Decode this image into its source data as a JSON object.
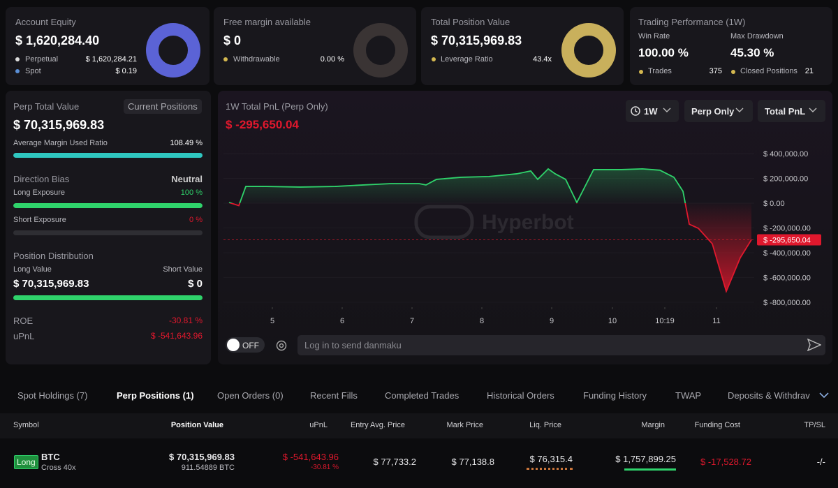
{
  "account_equity": {
    "title": "Account Equity",
    "value": "$ 1,620,284.40",
    "rows": [
      {
        "label": "Perpetual",
        "value": "$ 1,620,284.21"
      },
      {
        "label": "Spot",
        "value": "$ 0.19"
      }
    ]
  },
  "free_margin": {
    "title": "Free margin available",
    "value": "$ 0",
    "rows": [
      {
        "label": "Withdrawable",
        "value": "0.00 %"
      }
    ]
  },
  "total_position": {
    "title": "Total Position Value",
    "value": "$ 70,315,969.83",
    "rows": [
      {
        "label": "Leverage Ratio",
        "value": "43.4x"
      }
    ]
  },
  "performance": {
    "title": "Trading Performance (1W)",
    "stats": [
      {
        "label": "Win Rate",
        "value": "100.00 %"
      },
      {
        "label": "Max Drawdown",
        "value": "45.30 %"
      }
    ],
    "rows": [
      {
        "label": "Trades",
        "value": "375"
      },
      {
        "label": "Closed Positions",
        "value": "21"
      }
    ]
  },
  "perp": {
    "title": "Perp Total Value",
    "button": "Current Positions",
    "value": "$ 70,315,969.83",
    "margin_ratio": {
      "label": "Average Margin Used Ratio",
      "value": 108.49,
      "value_label": "108.49 %"
    },
    "bias_title": "Direction Bias",
    "bias": "Neutral",
    "long": {
      "label": "Long Exposure",
      "value": 100,
      "value_label": "100 %"
    },
    "short": {
      "label": "Short Exposure",
      "value": 0,
      "value_label": "0 %"
    },
    "distribution_title": "Position Distribution",
    "long_value": {
      "label": "Long Value",
      "value": "$ 70,315,969.83"
    },
    "short_value": {
      "label": "Short Value",
      "value": "$ 0"
    },
    "roe": {
      "label": "ROE",
      "value": "-30.81 %"
    },
    "upnl": {
      "label": "uPnL",
      "value": "$ -541,643.96"
    }
  },
  "chart_controls": [
    "1W",
    "Perp Only",
    "Total PnL"
  ],
  "chart_data": {
    "type": "area",
    "title": "1W Total PnL (Perp Only)",
    "current": {
      "value": -295650.04,
      "label": "$ -295,650.04"
    },
    "watermark": "Hyperbot",
    "x": [
      4.38,
      4.52,
      4.62,
      4.9,
      5.4,
      5.9,
      6.3,
      6.7,
      7.1,
      7.2,
      7.35,
      7.7,
      8.1,
      8.5,
      8.7,
      8.8,
      8.95,
      9.05,
      9.2,
      9.36,
      9.6,
      10.0,
      10.3,
      10.55,
      10.75,
      10.88,
      10.97,
      11.1,
      11.3,
      11.5,
      11.7,
      11.86
    ],
    "series": [
      {
        "values": [
          5000,
          -20000,
          135000,
          135000,
          130000,
          135000,
          147000,
          158000,
          158000,
          147000,
          192000,
          209000,
          215000,
          237000,
          260000,
          192000,
          277000,
          237000,
          192000,
          5000,
          271000,
          271000,
          277000,
          266000,
          209000,
          96000,
          -170000,
          -203000,
          -328000,
          -712000,
          -441000,
          -295650.04
        ],
        "color": "#2fd36b",
        "negative_color": "#e0182d"
      }
    ],
    "xlim": [
      4.3,
      11.9
    ],
    "ylim": [
      -840000,
      513000
    ],
    "xticks": [
      5,
      6,
      7,
      8,
      9,
      {
        "value": 9.87,
        "label": "10"
      },
      {
        "value": 10.62,
        "label": "10:19"
      },
      {
        "value": 11.36,
        "label": "11"
      }
    ],
    "yticks": [
      {
        "value": 400000,
        "label": "$ 400,000.00"
      },
      {
        "value": 200000,
        "label": "$ 200,000.00"
      },
      {
        "value": 0,
        "label": "$ 0.00"
      },
      {
        "value": -200000,
        "label": "$ -200,000.00"
      },
      {
        "value": -400000,
        "label": "$ -400,000.00"
      },
      {
        "value": -600000,
        "label": "$ -600,000.00"
      },
      {
        "value": -800000,
        "label": "$ -800,000.00"
      }
    ]
  },
  "danmaku": {
    "toggle": "OFF",
    "placeholder": "Log in to send danmaku"
  },
  "tabs": [
    "Spot Holdings (7)",
    "Perp Positions (1)",
    "Open Orders (0)",
    "Recent Fills",
    "Completed Trades",
    "Historical Orders",
    "Funding History",
    "TWAP",
    "Deposits & Withdrav"
  ],
  "table": {
    "headers": [
      "Symbol",
      "Position Value",
      "uPnL",
      "Entry Avg. Price",
      "Mark Price",
      "Liq. Price",
      "Margin",
      "Funding Cost",
      "TP/SL"
    ],
    "rows": [
      {
        "side": "Long",
        "symbol": "BTC",
        "mode": "Cross 40x",
        "position_value": "$ 70,315,969.83",
        "size": "911.54889 BTC",
        "upnl": "$ -541,643.96",
        "upnl_pct": "-30.81 %",
        "entry": "$ 77,733.2",
        "mark": "$ 77,138.8",
        "liq": "$ 76,315.4",
        "margin": "$ 1,757,899.25",
        "funding": "$ -17,528.72",
        "tpsl": "-/-"
      }
    ]
  }
}
